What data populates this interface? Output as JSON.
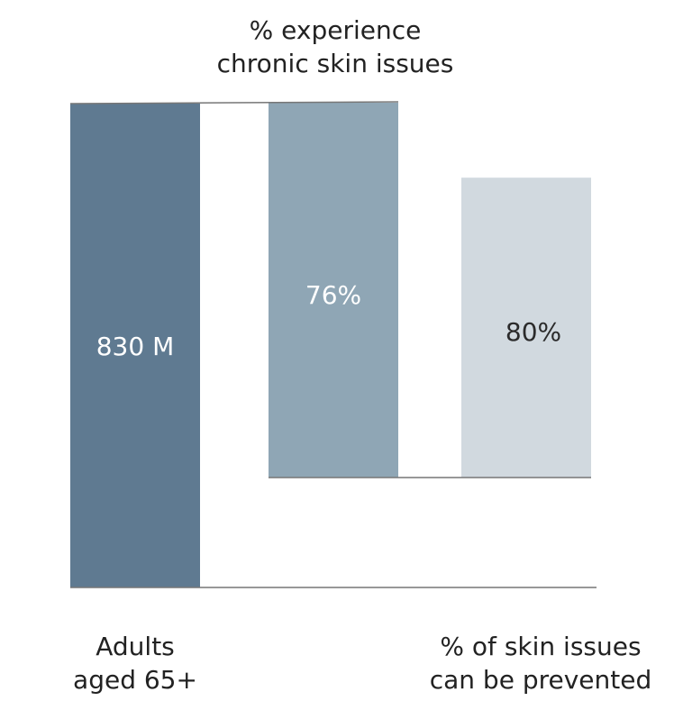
{
  "chart_data": {
    "type": "bar",
    "categories": [
      "Adults aged 65+",
      "% experience chronic skin issues",
      "% of skin issues can be prevented"
    ],
    "values": [
      830,
      76,
      80
    ],
    "data_labels": [
      "830 M",
      "76%",
      "80%"
    ],
    "category_labels": {
      "bar1": [
        "Adults",
        "aged 65+"
      ],
      "bar2": [
        "% experience",
        "chronic skin issues"
      ],
      "bar3": [
        "% of skin issues",
        "can be prevented"
      ]
    },
    "colors": {
      "bar1": "#5f7a91",
      "bar2": "#8fa6b5",
      "bar3": "#d1d9df",
      "text_light": "#ffffff",
      "text_dark": "#2b2b2b",
      "axis": "#777777"
    },
    "grid": false
  }
}
